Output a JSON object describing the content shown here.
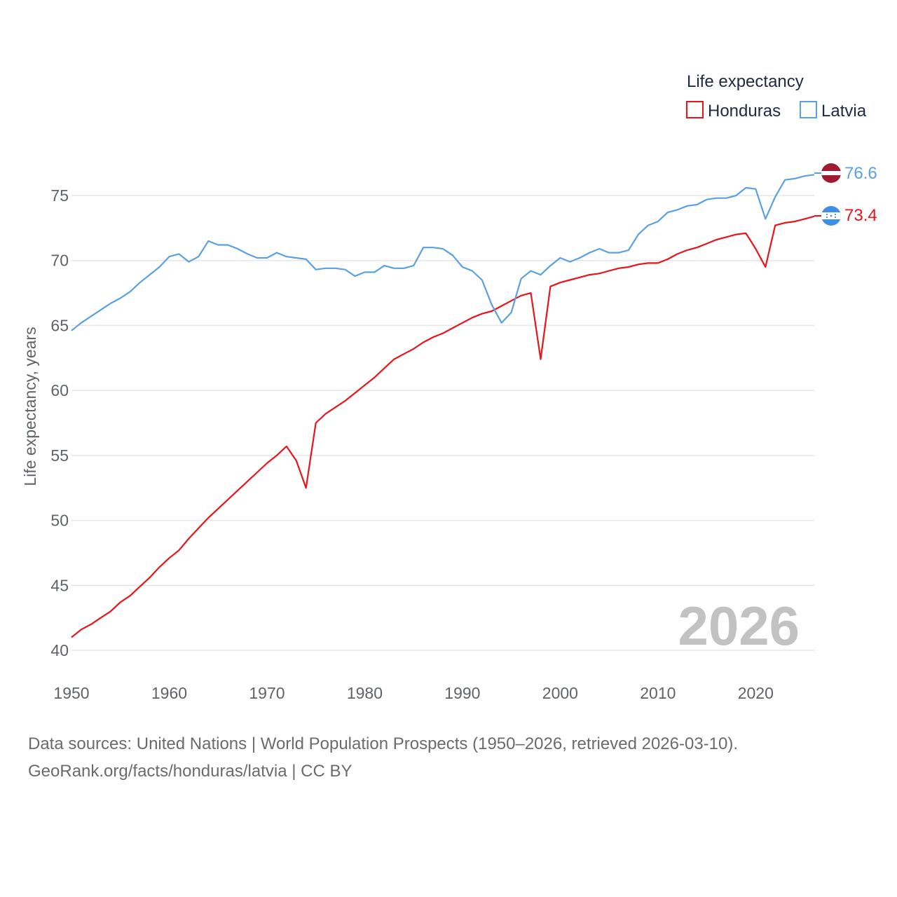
{
  "chart_data": {
    "type": "line",
    "legend_title": "Life expectancy",
    "ylabel": "Life expectancy, years",
    "year_label": "2026",
    "xlim": [
      1950,
      2026
    ],
    "ylim": [
      40,
      78
    ],
    "xticks": [
      1950,
      1960,
      1970,
      1980,
      1990,
      2000,
      2010,
      2020
    ],
    "yticks": [
      40,
      45,
      50,
      55,
      60,
      65,
      70,
      75
    ],
    "legend_position": "top-right",
    "x": [
      1950,
      1951,
      1952,
      1953,
      1954,
      1955,
      1956,
      1957,
      1958,
      1959,
      1960,
      1961,
      1962,
      1963,
      1964,
      1965,
      1966,
      1967,
      1968,
      1969,
      1970,
      1971,
      1972,
      1973,
      1974,
      1975,
      1976,
      1977,
      1978,
      1979,
      1980,
      1981,
      1982,
      1983,
      1984,
      1985,
      1986,
      1987,
      1988,
      1989,
      1990,
      1991,
      1992,
      1993,
      1994,
      1995,
      1996,
      1997,
      1998,
      1999,
      2000,
      2001,
      2002,
      2003,
      2004,
      2005,
      2006,
      2007,
      2008,
      2009,
      2010,
      2011,
      2012,
      2013,
      2014,
      2015,
      2016,
      2017,
      2018,
      2019,
      2020,
      2021,
      2022,
      2023,
      2024,
      2025,
      2026
    ],
    "series": [
      {
        "name": "Honduras",
        "color": "#e8141a",
        "end_label": "73.4",
        "values": [
          41.0,
          41.6,
          42.0,
          42.5,
          43.0,
          43.7,
          44.2,
          44.9,
          45.6,
          46.4,
          47.1,
          47.7,
          48.6,
          49.4,
          50.2,
          50.9,
          51.6,
          52.3,
          53.0,
          53.7,
          54.4,
          55.0,
          55.7,
          54.6,
          52.5,
          57.5,
          58.2,
          58.7,
          59.2,
          59.8,
          60.4,
          61.0,
          61.7,
          62.4,
          62.8,
          63.2,
          63.7,
          64.1,
          64.4,
          64.8,
          65.2,
          65.6,
          65.9,
          66.1,
          66.5,
          66.9,
          67.3,
          67.5,
          62.4,
          68.0,
          68.3,
          68.5,
          68.7,
          68.9,
          69.0,
          69.2,
          69.4,
          69.5,
          69.7,
          69.8,
          69.8,
          70.1,
          70.5,
          70.8,
          71.0,
          71.3,
          71.6,
          71.8,
          72.0,
          72.1,
          70.9,
          69.5,
          72.7,
          72.9,
          73.0,
          73.2,
          73.4
        ]
      },
      {
        "name": "Latvia",
        "color": "#5aa1e3",
        "end_label": "76.6",
        "values": [
          64.6,
          65.2,
          65.7,
          66.2,
          66.7,
          67.1,
          67.6,
          68.3,
          68.9,
          69.5,
          70.3,
          70.5,
          69.9,
          70.3,
          71.5,
          71.2,
          71.2,
          70.9,
          70.5,
          70.2,
          70.2,
          70.6,
          70.3,
          70.2,
          70.1,
          69.3,
          69.4,
          69.4,
          69.3,
          68.8,
          69.1,
          69.1,
          69.6,
          69.4,
          69.4,
          69.6,
          71.0,
          71.0,
          70.9,
          70.4,
          69.5,
          69.2,
          68.5,
          66.6,
          65.2,
          66.0,
          68.6,
          69.2,
          68.9,
          69.6,
          70.2,
          69.9,
          70.2,
          70.6,
          70.9,
          70.6,
          70.6,
          70.8,
          72.0,
          72.7,
          73.0,
          73.7,
          73.9,
          74.2,
          74.3,
          74.7,
          74.8,
          74.8,
          75.0,
          75.6,
          75.5,
          73.2,
          74.9,
          76.2,
          76.3,
          76.5,
          76.6
        ]
      }
    ]
  },
  "source": {
    "line1": "Data sources: United Nations | World Population Prospects (1950–2026, retrieved 2026-03-10).",
    "line2": "GeoRank.org/facts/honduras/latvia | CC BY"
  },
  "colors": {
    "grid": "#e6e6e6",
    "latvia_flag_red": "#9e1b32",
    "honduras_flag_blue": "#3d8ee6"
  }
}
